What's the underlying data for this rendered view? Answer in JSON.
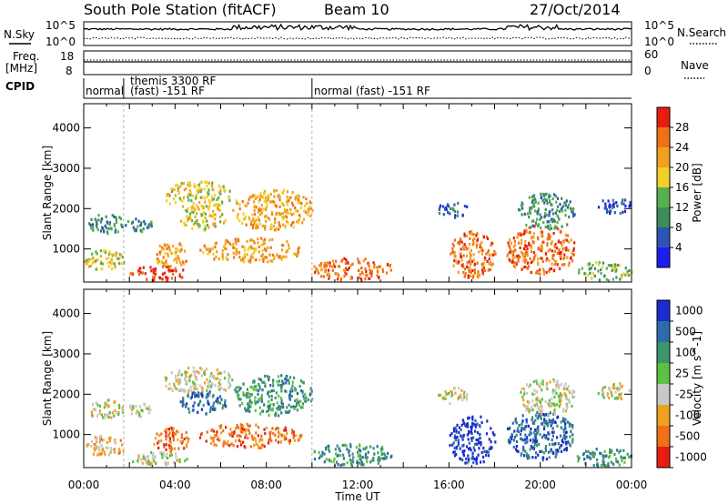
{
  "header": {
    "station": "South Pole Station (fitACF)",
    "beam": "Beam 10",
    "date": "27/Oct/2014"
  },
  "noise_panel": {
    "left_label": "N.Sky",
    "left_ticks": [
      "10^5",
      "10^0"
    ],
    "right_label": "N.Search",
    "right_ticks": [
      "10^5",
      "10^0"
    ]
  },
  "freq_panel": {
    "left_label_1": "Freq.",
    "left_label_2": "[MHz]",
    "left_ticks": [
      "18",
      "8"
    ],
    "right_label": "Nave",
    "right_ticks": [
      "60",
      "0"
    ]
  },
  "cpid": {
    "label": "CPID",
    "segments": [
      {
        "lines": [
          "normal"
        ]
      },
      {
        "lines": [
          "themis 3300 RF",
          "(fast) -151 RF"
        ]
      },
      {
        "lines": [
          "normal (fast) -151 RF"
        ]
      }
    ]
  },
  "axes": {
    "ylabel": "Slant Range [km]",
    "xlabel": "Time UT",
    "yticks": [
      "1000",
      "2000",
      "3000",
      "4000"
    ],
    "xticks": [
      "00:00",
      "04:00",
      "08:00",
      "12:00",
      "16:00",
      "20:00",
      "00:00"
    ]
  },
  "power_scale": {
    "title": "Power [dB]",
    "labels": [
      "4",
      "8",
      "12",
      "16",
      "20",
      "24",
      "28"
    ],
    "colors": [
      "#1c1cf0",
      "#2c54b4",
      "#3c8c5c",
      "#56b04c",
      "#f0d028",
      "#f0a020",
      "#f07018",
      "#e81c10"
    ]
  },
  "velocity_scale": {
    "title": "Velocity [m s^-1]",
    "labels": [
      "1000",
      "500",
      "100",
      "25",
      "-25",
      "-100",
      "-500",
      "-1000"
    ],
    "colors": [
      "#1c2cd0",
      "#2c6ca8",
      "#3c946c",
      "#5cc040",
      "#c8c8c8",
      "#f0a020",
      "#f07018",
      "#e81c10"
    ]
  },
  "chart_data": {
    "type": "heatmap",
    "x_range_hours": [
      0,
      24
    ],
    "y_range_km": [
      180,
      4600
    ],
    "xticks": [
      "00:00",
      "04:00",
      "08:00",
      "12:00",
      "16:00",
      "20:00",
      "00:00"
    ],
    "yticks": [
      1000,
      2000,
      3000,
      4000
    ],
    "cpid_change_hours": [
      1.75,
      10.0
    ],
    "power_regions": [
      {
        "t": [
          0.2,
          1.7
        ],
        "r": [
          1400,
          1900
        ],
        "level": 2
      },
      {
        "t": [
          0.0,
          1.8
        ],
        "r": [
          500,
          1000
        ],
        "level": 4
      },
      {
        "t": [
          1.8,
          3.0
        ],
        "r": [
          1450,
          1800
        ],
        "level": 2
      },
      {
        "t": [
          2.0,
          4.5
        ],
        "r": [
          250,
          600
        ],
        "level": 7
      },
      {
        "t": [
          3.0,
          4.6
        ],
        "r": [
          600,
          1200
        ],
        "level": 5
      },
      {
        "t": [
          3.5,
          6.5
        ],
        "r": [
          2000,
          2700
        ],
        "level": 4
      },
      {
        "t": [
          4.2,
          6.2
        ],
        "r": [
          1500,
          2100
        ],
        "level": 4
      },
      {
        "t": [
          5.0,
          9.5
        ],
        "r": [
          700,
          1300
        ],
        "level": 5
      },
      {
        "t": [
          6.5,
          10.0
        ],
        "r": [
          1500,
          2500
        ],
        "level": 5
      },
      {
        "t": [
          10.0,
          13.5
        ],
        "r": [
          250,
          800
        ],
        "level": 6
      },
      {
        "t": [
          15.5,
          16.8
        ],
        "r": [
          1800,
          2200
        ],
        "level": 1
      },
      {
        "t": [
          16.0,
          18.0
        ],
        "r": [
          300,
          1500
        ],
        "level": 6
      },
      {
        "t": [
          18.5,
          21.5
        ],
        "r": [
          400,
          1600
        ],
        "level": 6
      },
      {
        "t": [
          19.0,
          21.5
        ],
        "r": [
          1500,
          2400
        ],
        "level": 2
      },
      {
        "t": [
          21.5,
          24.0
        ],
        "r": [
          250,
          700
        ],
        "level": 3
      },
      {
        "t": [
          22.5,
          24.0
        ],
        "r": [
          1900,
          2300
        ],
        "level": 1
      }
    ],
    "velocity_regions": [
      {
        "t": [
          0.2,
          1.7
        ],
        "r": [
          1400,
          1900
        ],
        "level": 4
      },
      {
        "t": [
          0.0,
          1.8
        ],
        "r": [
          500,
          1000
        ],
        "level": 5
      },
      {
        "t": [
          1.8,
          3.0
        ],
        "r": [
          1450,
          1800
        ],
        "level": 4
      },
      {
        "t": [
          2.0,
          4.5
        ],
        "r": [
          250,
          600
        ],
        "level": 4
      },
      {
        "t": [
          3.0,
          4.6
        ],
        "r": [
          600,
          1200
        ],
        "level": 6
      },
      {
        "t": [
          3.5,
          6.5
        ],
        "r": [
          2000,
          2700
        ],
        "level": 4
      },
      {
        "t": [
          4.2,
          6.2
        ],
        "r": [
          1500,
          2100
        ],
        "level": 1
      },
      {
        "t": [
          5.0,
          9.5
        ],
        "r": [
          700,
          1300
        ],
        "level": 6
      },
      {
        "t": [
          6.5,
          10.0
        ],
        "r": [
          1500,
          2500
        ],
        "level": 2
      },
      {
        "t": [
          10.0,
          13.5
        ],
        "r": [
          250,
          800
        ],
        "level": 2
      },
      {
        "t": [
          15.5,
          16.8
        ],
        "r": [
          1800,
          2200
        ],
        "level": 4
      },
      {
        "t": [
          16.0,
          18.0
        ],
        "r": [
          300,
          1500
        ],
        "level": 0
      },
      {
        "t": [
          18.5,
          21.5
        ],
        "r": [
          400,
          1600
        ],
        "level": 1
      },
      {
        "t": [
          19.0,
          21.5
        ],
        "r": [
          1500,
          2400
        ],
        "level": 4
      },
      {
        "t": [
          21.5,
          24.0
        ],
        "r": [
          250,
          700
        ],
        "level": 2
      },
      {
        "t": [
          22.5,
          24.0
        ],
        "r": [
          1900,
          2300
        ],
        "level": 4
      }
    ]
  }
}
